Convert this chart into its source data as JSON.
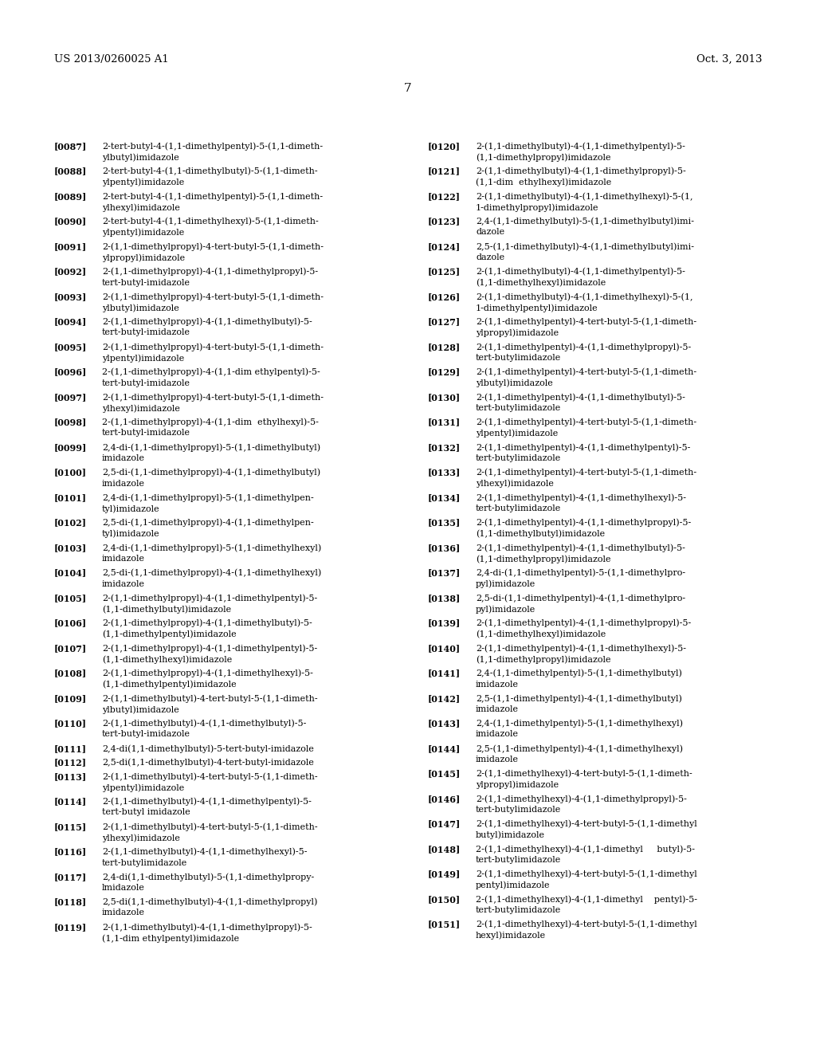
{
  "header_left": "US 2013/0260025 A1",
  "header_right": "Oct. 3, 2013",
  "page_number": "7",
  "background_color": "#ffffff",
  "text_color": "#000000",
  "left_column": [
    [
      "[0087]",
      "2-tert-butyl-4-(1,1-dimethylpentyl)-5-(1,1-dimeth-",
      "ylbutyl)imidazole"
    ],
    [
      "[0088]",
      "2-tert-butyl-4-(1,1-dimethylbutyl)-5-(1,1-dimeth-",
      "ylpentyl)imidazole"
    ],
    [
      "[0089]",
      "2-tert-butyl-4-(1,1-dimethylpentyl)-5-(1,1-dimeth-",
      "ylhexyl)imidazole"
    ],
    [
      "[0090]",
      "2-tert-butyl-4-(1,1-dimethylhexyl)-5-(1,1-dimeth-",
      "ylpentyl)imidazole"
    ],
    [
      "[0091]",
      "2-(1,1-dimethylpropyl)-4-tert-butyl-5-(1,1-dimeth-",
      "ylpropyl)imidazole"
    ],
    [
      "[0092]",
      "2-(1,1-dimethylpropyl)-4-(1,1-dimethylpropyl)-5-",
      "tert-butyl-imidazole"
    ],
    [
      "[0093]",
      "2-(1,1-dimethylpropyl)-4-tert-butyl-5-(1,1-dimeth-",
      "ylbutyl)imidazole"
    ],
    [
      "[0094]",
      "2-(1,1-dimethylpropyl)-4-(1,1-dimethylbutyl)-5-",
      "tert-butyl-imidazole"
    ],
    [
      "[0095]",
      "2-(1,1-dimethylpropyl)-4-tert-butyl-5-(1,1-dimeth-",
      "ylpentyl)imidazole"
    ],
    [
      "[0096]",
      "2-(1,1-dimethylpropyl)-4-(1,1-dim ethylpentyl)-5-",
      "tert-butyl-imidazole"
    ],
    [
      "[0097]",
      "2-(1,1-dimethylpropyl)-4-tert-butyl-5-(1,1-dimeth-",
      "ylhexyl)imidazole"
    ],
    [
      "[0098]",
      "2-(1,1-dimethylpropyl)-4-(1,1-dim  ethylhexyl)-5-",
      "tert-butyl-imidazole"
    ],
    [
      "[0099]",
      "2,4-di-(1,1-dimethylpropyl)-5-(1,1-dimethylbutyl)",
      "imidazole"
    ],
    [
      "[0100]",
      "2,5-di-(1,1-dimethylpropyl)-4-(1,1-dimethylbutyl)",
      "imidazole"
    ],
    [
      "[0101]",
      "2,4-di-(1,1-dimethylpropyl)-5-(1,1-dimethylpen-",
      "tyl)imidazole"
    ],
    [
      "[0102]",
      "2,5-di-(1,1-dimethylpropyl)-4-(1,1-dimethylpen-",
      "tyl)imidazole"
    ],
    [
      "[0103]",
      "2,4-di-(1,1-dimethylpropyl)-5-(1,1-dimethylhexyl)",
      "imidazole"
    ],
    [
      "[0104]",
      "2,5-di-(1,1-dimethylpropyl)-4-(1,1-dimethylhexyl)",
      "imidazole"
    ],
    [
      "[0105]",
      "2-(1,1-dimethylpropyl)-4-(1,1-dimethylpentyl)-5-",
      "(1,1-dimethylbutyl)imidazole"
    ],
    [
      "[0106]",
      "2-(1,1-dimethylpropyl)-4-(1,1-dimethylbutyl)-5-",
      "(1,1-dimethylpentyl)imidazole"
    ],
    [
      "[0107]",
      "2-(1,1-dimethylpropyl)-4-(1,1-dimethylpentyl)-5-",
      "(1,1-dimethylhexyl)imidazole"
    ],
    [
      "[0108]",
      "2-(1,1-dimethylpropyl)-4-(1,1-dimethylhexyl)-5-",
      "(1,1-dimethylpentyl)imidazole"
    ],
    [
      "[0109]",
      "2-(1,1-dimethylbutyl)-4-tert-butyl-5-(1,1-dimeth-",
      "ylbutyl)imidazole"
    ],
    [
      "[0110]",
      "2-(1,1-dimethylbutyl)-4-(1,1-dimethylbutyl)-5-",
      "tert-butyl-imidazole"
    ],
    [
      "[0111]",
      "2,4-di(1,1-dimethylbutyl)-5-tert-butyl-imidazole",
      ""
    ],
    [
      "[0112]",
      "2,5-di(1,1-dimethylbutyl)-4-tert-butyl-imidazole",
      ""
    ],
    [
      "[0113]",
      "2-(1,1-dimethylbutyl)-4-tert-butyl-5-(1,1-dimeth-",
      "ylpentyl)imidazole"
    ],
    [
      "[0114]",
      "2-(1,1-dimethylbutyl)-4-(1,1-dimethylpentyl)-5-",
      "tert-butyl imidazole"
    ],
    [
      "[0115]",
      "2-(1,1-dimethylbutyl)-4-tert-butyl-5-(1,1-dimeth-",
      "ylhexyl)imidazole"
    ],
    [
      "[0116]",
      "2-(1,1-dimethylbutyl)-4-(1,1-dimethylhexyl)-5-",
      "tert-butylimidazole"
    ],
    [
      "[0117]",
      "2,4-di(1,1-dimethylbutyl)-5-(1,1-dimethylpropy-",
      "lmidazole"
    ],
    [
      "[0118]",
      "2,5-di(1,1-dimethylbutyl)-4-(1,1-dimethylpropyl)",
      "imidazole"
    ],
    [
      "[0119]",
      "2-(1,1-dimethylbutyl)-4-(1,1-dimethylpropyl)-5-",
      "(1,1-dim ethylpentyl)imidazole"
    ]
  ],
  "right_column": [
    [
      "[0120]",
      "2-(1,1-dimethylbutyl)-4-(1,1-dimethylpentyl)-5-",
      "(1,1-dimethylpropyl)imidazole"
    ],
    [
      "[0121]",
      "2-(1,1-dimethylbutyl)-4-(1,1-dimethylpropyl)-5-",
      "(1,1-dim  ethylhexyl)imidazole"
    ],
    [
      "[0122]",
      "2-(1,1-dimethylbutyl)-4-(1,1-dimethylhexyl)-5-(1,",
      "1-dimethylpropyl)imidazole"
    ],
    [
      "[0123]",
      "2,4-(1,1-dimethylbutyl)-5-(1,1-dimethylbutyl)imi-",
      "dazole"
    ],
    [
      "[0124]",
      "2,5-(1,1-dimethylbutyl)-4-(1,1-dimethylbutyl)imi-",
      "dazole"
    ],
    [
      "[0125]",
      "2-(1,1-dimethylbutyl)-4-(1,1-dimethylpentyl)-5-",
      "(1,1-dimethylhexyl)imidazole"
    ],
    [
      "[0126]",
      "2-(1,1-dimethylbutyl)-4-(1,1-dimethylhexyl)-5-(1,",
      "1-dimethylpentyl)imidazole"
    ],
    [
      "[0127]",
      "2-(1,1-dimethylpentyl)-4-tert-butyl-5-(1,1-dimeth-",
      "ylpropyl)imidazole"
    ],
    [
      "[0128]",
      "2-(1,1-dimethylpentyl)-4-(1,1-dimethylpropyl)-5-",
      "tert-butylimidazole"
    ],
    [
      "[0129]",
      "2-(1,1-dimethylpentyl)-4-tert-butyl-5-(1,1-dimeth-",
      "ylbutyl)imidazole"
    ],
    [
      "[0130]",
      "2-(1,1-dimethylpentyl)-4-(1,1-dimethylbutyl)-5-",
      "tert-butylimidazole"
    ],
    [
      "[0131]",
      "2-(1,1-dimethylpentyl)-4-tert-butyl-5-(1,1-dimeth-",
      "ylpentyl)imidazole"
    ],
    [
      "[0132]",
      "2-(1,1-dimethylpentyl)-4-(1,1-dimethylpentyl)-5-",
      "tert-butylimidazole"
    ],
    [
      "[0133]",
      "2-(1,1-dimethylpentyl)-4-tert-butyl-5-(1,1-dimeth-",
      "ylhexyl)imidazole"
    ],
    [
      "[0134]",
      "2-(1,1-dimethylpentyl)-4-(1,1-dimethylhexyl)-5-",
      "tert-butylimidazole"
    ],
    [
      "[0135]",
      "2-(1,1-dimethylpentyl)-4-(1,1-dimethylpropyl)-5-",
      "(1,1-dimethylbutyl)imidazole"
    ],
    [
      "[0136]",
      "2-(1,1-dimethylpentyl)-4-(1,1-dimethylbutyl)-5-",
      "(1,1-dimethylpropyl)imidazole"
    ],
    [
      "[0137]",
      "2,4-di-(1,1-dimethylpentyl)-5-(1,1-dimethylpro-",
      "pyl)imidazole"
    ],
    [
      "[0138]",
      "2,5-di-(1,1-dimethylpentyl)-4-(1,1-dimethylpro-",
      "pyl)imidazole"
    ],
    [
      "[0139]",
      "2-(1,1-dimethylpentyl)-4-(1,1-dimethylpropyl)-5-",
      "(1,1-dimethylhexyl)imidazole"
    ],
    [
      "[0140]",
      "2-(1,1-dimethylpentyl)-4-(1,1-dimethylhexyl)-5-",
      "(1,1-dimethylpropyl)imidazole"
    ],
    [
      "[0141]",
      "2,4-(1,1-dimethylpentyl)-5-(1,1-dimethylbutyl)",
      "imidazole"
    ],
    [
      "[0142]",
      "2,5-(1,1-dimethylpentyl)-4-(1,1-dimethylbutyl)",
      "imidazole"
    ],
    [
      "[0143]",
      "2,4-(1,1-dimethylpentyl)-5-(1,1-dimethylhexyl)",
      "imidazole"
    ],
    [
      "[0144]",
      "2,5-(1,1-dimethylpentyl)-4-(1,1-dimethylhexyl)",
      "imidazole"
    ],
    [
      "[0145]",
      "2-(1,1-dimethylhexyl)-4-tert-butyl-5-(1,1-dimeth-",
      "ylpropyl)imidazole"
    ],
    [
      "[0146]",
      "2-(1,1-dimethylhexyl)-4-(1,1-dimethylpropyl)-5-",
      "tert-butylimidazole"
    ],
    [
      "[0147]",
      "2-(1,1-dimethylhexyl)-4-tert-butyl-5-(1,1-dimethyl",
      "butyl)imidazole"
    ],
    [
      "[0148]",
      "2-(1,1-dimethylhexyl)-4-(1,1-dimethyl     butyl)-5-",
      "tert-butylimidazole"
    ],
    [
      "[0149]",
      "2-(1,1-dimethylhexyl)-4-tert-butyl-5-(1,1-dimethyl",
      "pentyl)imidazole"
    ],
    [
      "[0150]",
      "2-(1,1-dimethylhexyl)-4-(1,1-dimethyl    pentyl)-5-",
      "tert-butylimidazole"
    ],
    [
      "[0151]",
      "2-(1,1-dimethylhexyl)-4-tert-butyl-5-(1,1-dimethyl",
      "hexyl)imidazole"
    ]
  ]
}
